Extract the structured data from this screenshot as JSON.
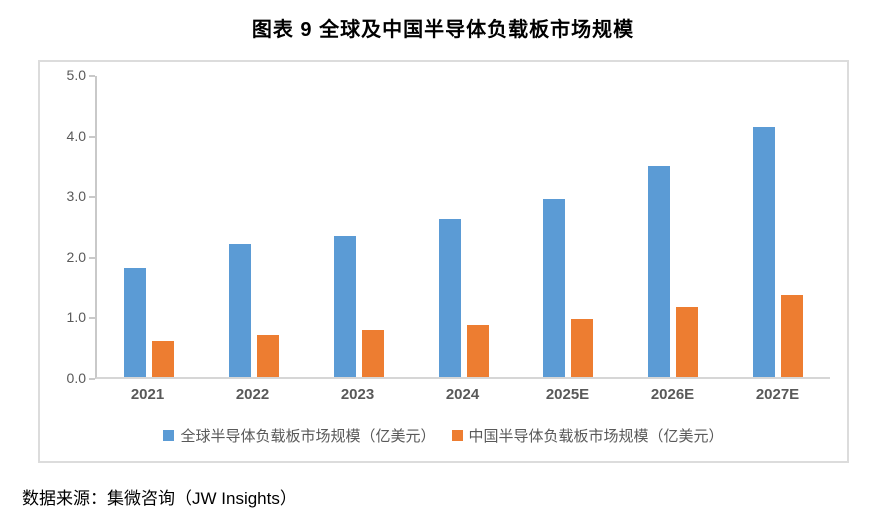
{
  "chart": {
    "title": "图表 9 全球及中国半导体负载板市场规模",
    "source": "数据来源：集微咨询（JW Insights）"
  },
  "chart_data": {
    "type": "bar",
    "title": "图表 9 全球及中国半导体负载板市场规模",
    "categories": [
      "2021",
      "2022",
      "2023",
      "2024",
      "2025E",
      "2026E",
      "2027E"
    ],
    "series": [
      {
        "name": "全球半导体负载板市场规模（亿美元）",
        "color": "#5B9BD5",
        "values": [
          1.8,
          2.2,
          2.32,
          2.6,
          2.93,
          3.48,
          4.12
        ]
      },
      {
        "name": "中国半导体负载板市场规模（亿美元）",
        "color": "#ED7D31",
        "values": [
          0.6,
          0.7,
          0.77,
          0.85,
          0.96,
          1.15,
          1.35
        ]
      }
    ],
    "xlabel": "",
    "ylabel": "",
    "ylim": [
      0,
      5
    ],
    "ytick_step": 1.0,
    "ytick_labels": [
      "0.0",
      "1.0",
      "2.0",
      "3.0",
      "4.0",
      "5.0"
    ],
    "grid": false,
    "legend_position": "bottom",
    "axis_color": "#c9c9c9",
    "label_color": "#595959"
  }
}
